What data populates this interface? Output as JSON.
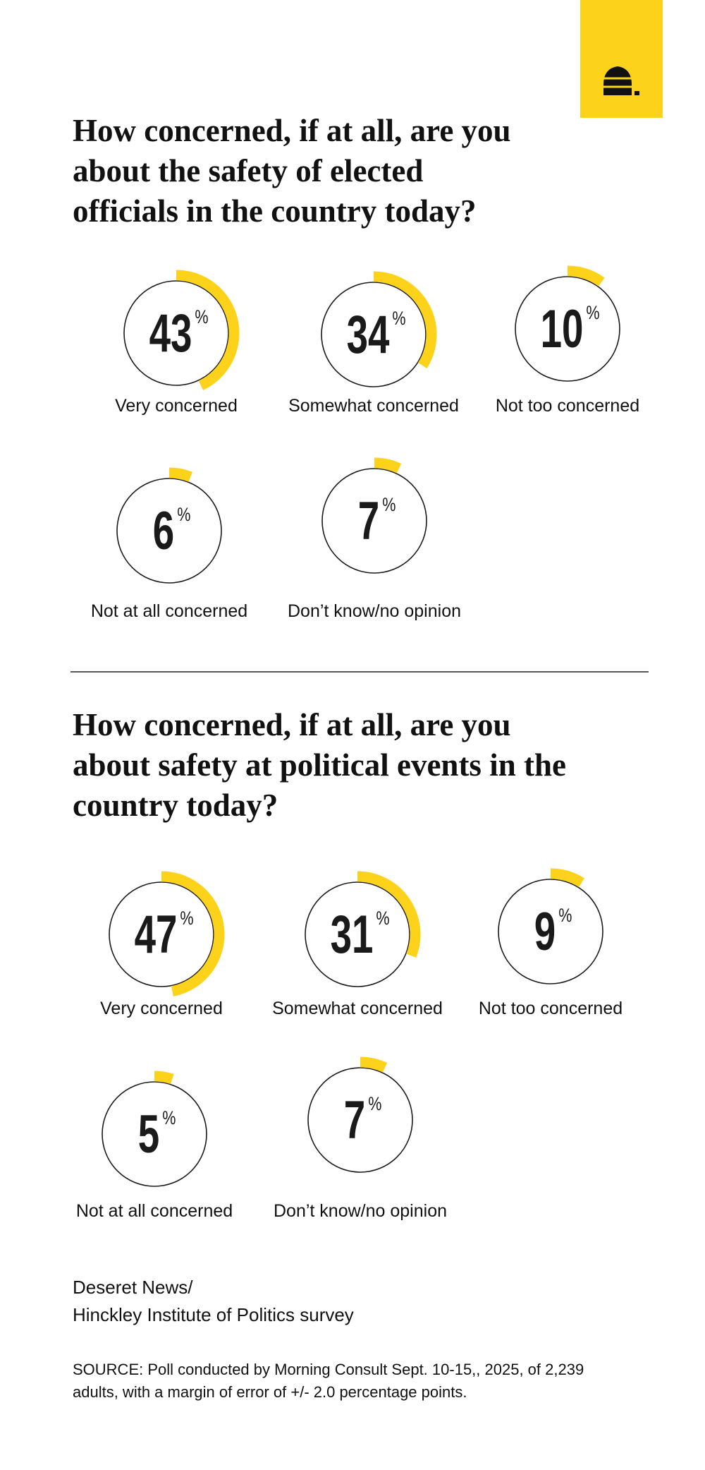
{
  "chart_data": [
    {
      "type": "gauge",
      "title": [
        "How concerned, if at all, are you",
        "about the safety of elected",
        "officials in the country today?"
      ],
      "categories": [
        "Very concerned",
        "Somewhat concerned",
        "Not too concerned",
        "Not at all concerned",
        "Don’t know/no opinion"
      ],
      "values": [
        43,
        34,
        10,
        6,
        7
      ],
      "unit": "%",
      "color": "#fdd21b"
    },
    {
      "type": "gauge",
      "title": [
        "How concerned, if at all, are you",
        "about safety at political events in the",
        "country today?"
      ],
      "categories": [
        "Very concerned",
        "Somewhat concerned",
        "Not too concerned",
        "Not at all concerned",
        "Don’t know/no opinion"
      ],
      "values": [
        47,
        31,
        9,
        5,
        7
      ],
      "unit": "%",
      "color": "#fdd21b"
    }
  ],
  "credit": [
    "Deseret News/",
    "Hinckley Institute of Politics survey"
  ],
  "source": [
    "SOURCE: Poll conducted by Morning Consult Sept. 10-15,, 2025, of 2,239",
    "adults, with a margin of error of +/- 2.0 percentage points."
  ]
}
